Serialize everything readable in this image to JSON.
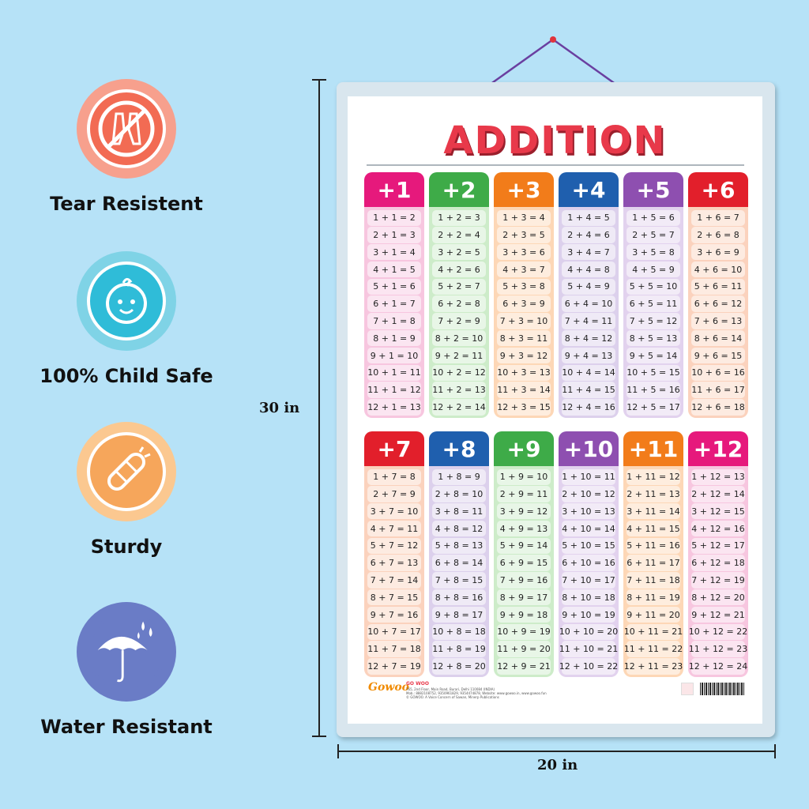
{
  "features": [
    {
      "label": "Tear Resistent",
      "icon": "no-tear-icon",
      "color": "#f26b53"
    },
    {
      "label": "100% Child Safe",
      "icon": "baby-face-icon",
      "color": "#2fbcd8"
    },
    {
      "label": "Sturdy",
      "icon": "bandage-icon",
      "color": "#f6a65b"
    },
    {
      "label": "Water Resistant",
      "icon": "umbrella-icon",
      "color": "#6a7cc6"
    }
  ],
  "dimensions": {
    "height": "30 in",
    "width": "20 in"
  },
  "poster": {
    "title": "ADDITION",
    "cards": [
      {
        "head": "+1",
        "color": "#e6197c",
        "body": "#f7c6df",
        "equations": [
          "1 + 1 =  2",
          "2 + 1 =  3",
          "3 + 1 =  4",
          "4 + 1 =  5",
          "5 + 1 =  6",
          "6 + 1 =  7",
          "7 + 1 =  8",
          "8 + 1 =  9",
          "9 + 1 = 10",
          "10 + 1 = 11",
          "11 + 1 = 12",
          "12 + 1 = 13"
        ]
      },
      {
        "head": "+2",
        "color": "#3eab48",
        "body": "#cdecc9",
        "equations": [
          "1 + 2 =  3",
          "2 + 2 =  4",
          "3 + 2 =  5",
          "4 + 2 =  6",
          "5 + 2 =  7",
          "6 + 2 =  8",
          "7 + 2 =  9",
          "8 + 2 = 10",
          "9 + 2 = 11",
          "10 + 2 = 12",
          "11 + 2 = 13",
          "12 + 2 = 14"
        ]
      },
      {
        "head": "+3",
        "color": "#f27c1a",
        "body": "#fdd7b6",
        "equations": [
          "1 + 3 =  4",
          "2 + 3 =  5",
          "3 + 3 =  6",
          "4 + 3 =  7",
          "5 + 3 =  8",
          "6 + 3 =  9",
          "7 + 3 = 10",
          "8 + 3 = 11",
          "9 + 3 = 12",
          "10 + 3 = 13",
          "11 + 3 = 14",
          "12 + 3 = 15"
        ]
      },
      {
        "head": "+4",
        "color": "#1f5fae",
        "body": "#dcd0ec",
        "equations": [
          "1 + 4 =  5",
          "2 + 4 =  6",
          "3 + 4 =  7",
          "4 + 4 =  8",
          "5 + 4 =  9",
          "6 + 4 = 10",
          "7 + 4 = 11",
          "8 + 4 = 12",
          "9 + 4 = 13",
          "10 + 4 = 14",
          "11 + 4 = 15",
          "12 + 4 = 16"
        ]
      },
      {
        "head": "+5",
        "color": "#8e4fb0",
        "body": "#e2d2ee",
        "equations": [
          "1 + 5 =  6",
          "2 + 5 =  7",
          "3 + 5 =  8",
          "4 + 5 =  9",
          "5 + 5 = 10",
          "6 + 5 = 11",
          "7 + 5 = 12",
          "8 + 5 = 13",
          "9 + 5 = 14",
          "10 + 5 = 15",
          "11 + 5 = 16",
          "12 + 5 = 17"
        ]
      },
      {
        "head": "+6",
        "color": "#e21f2b",
        "body": "#fbd2bd",
        "equations": [
          "1 + 6 =  7",
          "2 + 6 =  8",
          "3 + 6 =  9",
          "4 + 6 = 10",
          "5 + 6 = 11",
          "6 + 6 = 12",
          "7 + 6 = 13",
          "8 + 6 = 14",
          "9 + 6 = 15",
          "10 + 6 = 16",
          "11 + 6 = 17",
          "12 + 6 = 18"
        ]
      },
      {
        "head": "+7",
        "color": "#e21f2b",
        "body": "#fbd2bd",
        "equations": [
          "1 + 7 =  8",
          "2 + 7 =  9",
          "3 + 7 = 10",
          "4 + 7 = 11",
          "5 + 7 = 12",
          "6 + 7 = 13",
          "7 + 7 = 14",
          "8 + 7 = 15",
          "9 + 7 = 16",
          "10 + 7 = 17",
          "11 + 7 = 18",
          "12 + 7 = 19"
        ]
      },
      {
        "head": "+8",
        "color": "#1f5fae",
        "body": "#dcd0ec",
        "equations": [
          "1 + 8 =  9",
          "2 + 8 = 10",
          "3 + 8 = 11",
          "4 + 8 = 12",
          "5 + 8 = 13",
          "6 + 8 = 14",
          "7 + 8 = 15",
          "8 + 8 = 16",
          "9 + 8 = 17",
          "10 + 8 = 18",
          "11 + 8 = 19",
          "12 + 8 = 20"
        ]
      },
      {
        "head": "+9",
        "color": "#3eab48",
        "body": "#cdecc9",
        "equations": [
          "1 + 9 = 10",
          "2 + 9 = 11",
          "3 + 9 = 12",
          "4 + 9 = 13",
          "5 + 9 = 14",
          "6 + 9 = 15",
          "7 + 9 = 16",
          "8 + 9 = 17",
          "9 + 9 = 18",
          "10 + 9 = 19",
          "11 + 9 = 20",
          "12 + 9 = 21"
        ]
      },
      {
        "head": "+10",
        "color": "#8e4fb0",
        "body": "#e2d2ee",
        "equations": [
          "1 + 10 = 11",
          "2 + 10 = 12",
          "3 + 10 = 13",
          "4 + 10 = 14",
          "5 + 10 = 15",
          "6 + 10 = 16",
          "7 + 10 = 17",
          "8 + 10 = 18",
          "9 + 10 = 19",
          "10 + 10 = 20",
          "11 + 10 = 21",
          "12 + 10 = 22"
        ]
      },
      {
        "head": "+11",
        "color": "#f27c1a",
        "body": "#fdd7b6",
        "equations": [
          "1 + 11 = 12",
          "2 + 11 = 13",
          "3 + 11 = 14",
          "4 + 11 = 15",
          "5 + 11 = 16",
          "6 + 11 = 17",
          "7 + 11 = 18",
          "8 + 11 = 19",
          "9 + 11 = 20",
          "10 + 11 = 21",
          "11 + 11 = 22",
          "12 + 11 = 23"
        ]
      },
      {
        "head": "+12",
        "color": "#e6197c",
        "body": "#f7c6df",
        "equations": [
          "1 + 12 = 13",
          "2 + 12 = 14",
          "3 + 12 = 15",
          "4 + 12 = 16",
          "5 + 12 = 17",
          "6 + 12 = 18",
          "7 + 12 = 19",
          "8 + 12 = 20",
          "9 + 12 = 21",
          "10 + 12 = 22",
          "11 + 12 = 23",
          "12 + 12 = 24"
        ]
      }
    ],
    "footer": {
      "logo": "Gowoo",
      "publisher": "GO WOO",
      "address": "765, 2nd Floor, Main Road, Burari, Delhi 110084 (INDIA)",
      "contact": "Mob.: 8882108752, 9350961829, 9354474878, Website: www.gowoo.in, www.gowoo.fun",
      "rights": "© GOWOO. A Voice Concern of Sawan, Minerp Publications"
    }
  }
}
